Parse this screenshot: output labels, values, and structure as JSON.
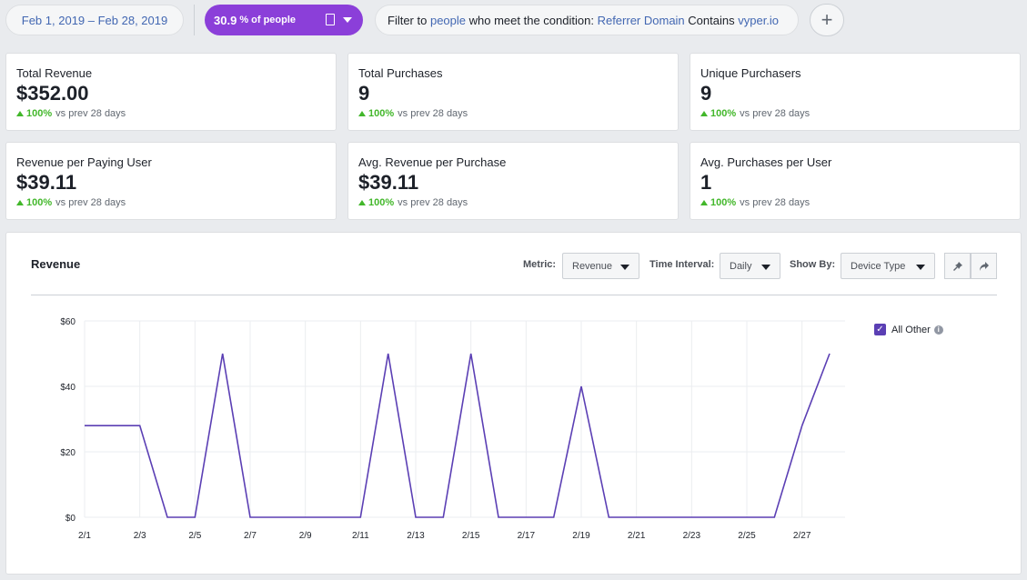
{
  "filters": {
    "date_range": "Feb 1, 2019 – Feb 28, 2019",
    "segment_percent": "30.9",
    "segment_label": "% of people",
    "condition_prefix": "Filter to ",
    "condition_people": "people",
    "condition_middle": " who meet the condition: ",
    "condition_field": "Referrer Domain",
    "condition_operator": " Contains ",
    "condition_value": "vyper.io",
    "add_label": "+"
  },
  "kpis": [
    {
      "title": "Total Revenue",
      "value": "$352.00",
      "change": "100%",
      "change_label": "vs prev 28 days"
    },
    {
      "title": "Total Purchases",
      "value": "9",
      "change": "100%",
      "change_label": "vs prev 28 days"
    },
    {
      "title": "Unique Purchasers",
      "value": "9",
      "change": "100%",
      "change_label": "vs prev 28 days"
    },
    {
      "title": "Revenue per Paying User",
      "value": "$39.11",
      "change": "100%",
      "change_label": "vs prev 28 days"
    },
    {
      "title": "Avg. Revenue per Purchase",
      "value": "$39.11",
      "change": "100%",
      "change_label": "vs prev 28 days"
    },
    {
      "title": "Avg. Purchases per User",
      "value": "1",
      "change": "100%",
      "change_label": "vs prev 28 days"
    }
  ],
  "chart_panel": {
    "title": "Revenue",
    "metric_label": "Metric:",
    "metric_value": "Revenue",
    "interval_label": "Time Interval:",
    "interval_value": "Daily",
    "showby_label": "Show By:",
    "showby_value": "Device Type",
    "pin_icon": "pin-icon",
    "share_icon": "share-icon"
  },
  "chart_data": {
    "type": "line",
    "title": "",
    "xlabel": "",
    "ylabel": "",
    "ylim": [
      0,
      60
    ],
    "yticks": [
      0,
      20,
      40,
      60
    ],
    "ytick_labels": [
      "$0",
      "$20",
      "$40",
      "$60"
    ],
    "x": [
      "2/1",
      "2/2",
      "2/3",
      "2/4",
      "2/5",
      "2/6",
      "2/7",
      "2/8",
      "2/9",
      "2/10",
      "2/11",
      "2/12",
      "2/13",
      "2/14",
      "2/15",
      "2/16",
      "2/17",
      "2/18",
      "2/19",
      "2/20",
      "2/21",
      "2/22",
      "2/23",
      "2/24",
      "2/25",
      "2/26",
      "2/27",
      "2/28"
    ],
    "xtick_labels": [
      "2/1",
      "2/3",
      "2/5",
      "2/7",
      "2/9",
      "2/11",
      "2/13",
      "2/15",
      "2/17",
      "2/19",
      "2/21",
      "2/23",
      "2/25",
      "2/27"
    ],
    "grid": true,
    "legend_position": "right",
    "series": [
      {
        "name": "All Other",
        "color": "#5b3fb4",
        "values": [
          28,
          28,
          28,
          0,
          0,
          50,
          0,
          0,
          0,
          0,
          0,
          50,
          0,
          0,
          50,
          0,
          0,
          0,
          40,
          0,
          0,
          0,
          0,
          0,
          0,
          0,
          28,
          50
        ]
      }
    ]
  }
}
